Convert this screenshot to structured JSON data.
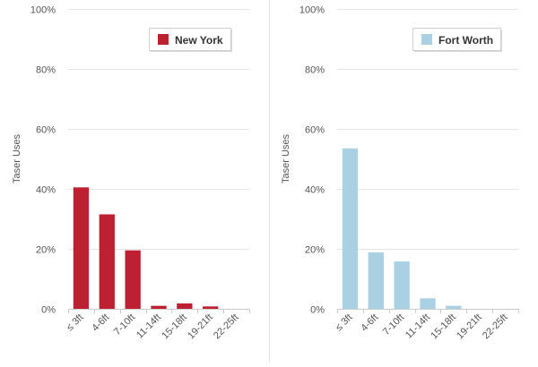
{
  "chart_data": [
    {
      "type": "bar",
      "categories": [
        "≤ 3ft",
        "4-6ft",
        "7-10ft",
        "11-14ft",
        "15-18ft",
        "19-21ft",
        "22-25ft"
      ],
      "series": [
        {
          "name": "New York",
          "values": [
            40.5,
            31.5,
            19.5,
            1.0,
            1.8,
            0.8,
            0.0
          ]
        }
      ],
      "ylabel": "Taser Uses",
      "xlabel": "",
      "ylim": [
        0,
        100
      ],
      "yticks": [
        "0%",
        "20%",
        "40%",
        "60%",
        "80%",
        "100%"
      ],
      "legend_position": "top-right",
      "color": "#bd2031",
      "grid": true
    },
    {
      "type": "bar",
      "categories": [
        "≤ 3ft",
        "4-6ft",
        "7-10ft",
        "11-14ft",
        "15-18ft",
        "19-21ft",
        "22-25ft"
      ],
      "series": [
        {
          "name": "Fort Worth",
          "values": [
            53.5,
            18.8,
            15.8,
            3.5,
            1.0,
            0.0,
            0.0
          ]
        }
      ],
      "ylabel": "Taser Uses",
      "xlabel": "",
      "ylim": [
        0,
        100
      ],
      "yticks": [
        "0%",
        "20%",
        "40%",
        "60%",
        "80%",
        "100%"
      ],
      "legend_position": "top-right",
      "color": "#a9d0e3",
      "grid": true
    }
  ]
}
